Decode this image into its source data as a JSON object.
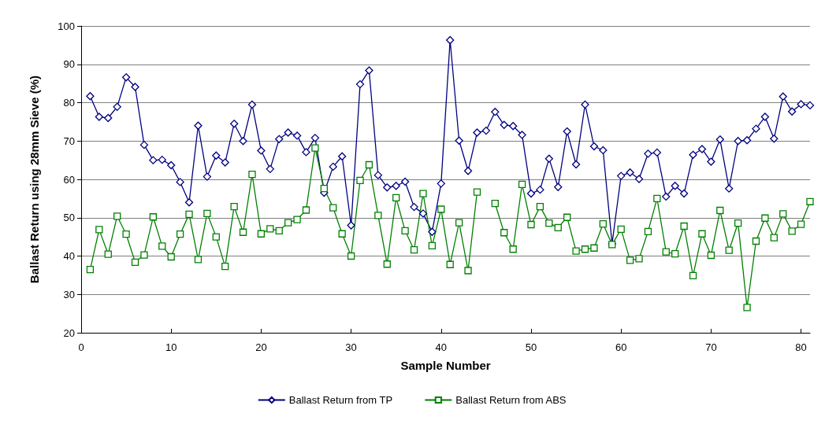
{
  "chart_data": {
    "type": "line",
    "xlabel": "Sample Number",
    "ylabel": "Ballast Return using 28mm Sieve (%)",
    "x": [
      1,
      2,
      3,
      4,
      5,
      6,
      7,
      8,
      9,
      10,
      11,
      12,
      13,
      14,
      15,
      16,
      17,
      18,
      19,
      20,
      21,
      22,
      23,
      24,
      25,
      26,
      27,
      28,
      29,
      30,
      31,
      32,
      33,
      34,
      35,
      36,
      37,
      38,
      39,
      40,
      41,
      42,
      43,
      44,
      45,
      46,
      47,
      48,
      49,
      50,
      51,
      52,
      53,
      54,
      55,
      56,
      57,
      58,
      59,
      60,
      61,
      62,
      63,
      64,
      65,
      66,
      67,
      68,
      69,
      70,
      71,
      72,
      73,
      74,
      75,
      76,
      77,
      78,
      79,
      80,
      81
    ],
    "series": [
      {
        "name": "Ballast Return from TP",
        "color": "#000080",
        "marker": "diamond",
        "values": [
          81.7,
          76.3,
          76.0,
          78.9,
          86.6,
          84.1,
          69.0,
          65.0,
          65.1,
          63.7,
          59.3,
          54.0,
          74.0,
          60.7,
          66.2,
          64.4,
          74.5,
          70.0,
          79.5,
          67.5,
          62.7,
          70.5,
          72.2,
          71.4,
          67.1,
          70.8,
          56.5,
          63.3,
          66.0,
          48.0,
          84.8,
          88.4,
          61.1,
          57.9,
          58.3,
          59.4,
          52.8,
          51.1,
          46.3,
          58.9,
          96.3,
          70.1,
          62.2,
          72.2,
          72.7,
          77.6,
          74.2,
          73.9,
          71.6,
          56.3,
          57.3,
          65.4,
          58.0,
          72.5,
          63.9,
          79.5,
          68.6,
          67.6,
          43.2,
          60.9,
          61.8,
          60.1,
          66.7,
          67.0,
          55.5,
          58.3,
          56.3,
          66.4,
          67.9,
          64.6,
          70.4,
          57.6,
          70.0,
          70.2,
          73.2,
          76.3,
          70.6,
          81.6,
          77.7,
          79.6,
          79.3
        ]
      },
      {
        "name": "Ballast Return from ABS",
        "color": "#008000",
        "marker": "square",
        "values": [
          36.5,
          46.9,
          40.5,
          50.4,
          45.7,
          38.4,
          40.3,
          50.2,
          42.6,
          39.8,
          45.7,
          50.9,
          39.1,
          51.1,
          45.0,
          37.3,
          52.9,
          46.2,
          61.3,
          45.8,
          47.1,
          46.6,
          48.7,
          49.5,
          52.0,
          68.2,
          57.6,
          52.6,
          45.8,
          40.0,
          59.7,
          63.8,
          50.6,
          37.9,
          55.2,
          46.6,
          41.6,
          56.3,
          42.7,
          52.2,
          37.8,
          48.7,
          36.2,
          56.7,
          null,
          53.7,
          46.1,
          41.8,
          58.7,
          48.2,
          52.9,
          48.6,
          47.4,
          50.1,
          41.3,
          41.8,
          42.1,
          48.4,
          43.0,
          47.0,
          38.9,
          39.3,
          46.4,
          55.0,
          41.1,
          40.6,
          47.8,
          34.9,
          45.8,
          40.2,
          51.9,
          41.5,
          48.6,
          26.6,
          43.9,
          49.9,
          44.8,
          51.0,
          46.5,
          48.3,
          54.2
        ]
      }
    ],
    "xlim": [
      0,
      81
    ],
    "xticks": [
      0,
      10,
      20,
      30,
      40,
      50,
      60,
      70,
      80
    ],
    "ylim": [
      20,
      100
    ],
    "yticks": [
      20,
      30,
      40,
      50,
      60,
      70,
      80,
      90,
      100
    ],
    "grid": "y",
    "legend": "bottom",
    "line_style": "solid"
  }
}
